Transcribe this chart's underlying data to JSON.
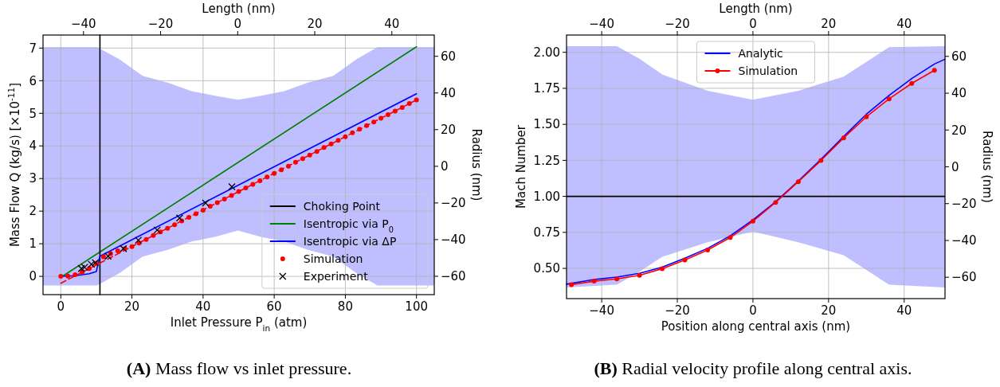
{
  "chart_data": [
    {
      "type": "line",
      "xlabel": "Inlet Pressure P$_{in}$ (atm)",
      "ylabel": "Mass Flow Q (kg/s) [×10$^{-11}$]",
      "x2label": "Length (nm)",
      "y2label": "Radius (nm)",
      "xlim": [
        -5,
        105
      ],
      "xticks": [
        0,
        20,
        40,
        60,
        80,
        100
      ],
      "ylim": [
        -0.56,
        7.4
      ],
      "yticks": [
        0,
        1,
        2,
        3,
        4,
        5,
        6,
        7
      ],
      "x2lim": [
        -50.5,
        51
      ],
      "x2ticks": [
        -40,
        -20,
        0,
        20,
        40
      ],
      "y2lim": [
        -70,
        71.6
      ],
      "y2ticks": [
        -60,
        -40,
        -20,
        0,
        20,
        40,
        60
      ],
      "grid": true,
      "legend": "bottom right",
      "series": [
        {
          "type": "line",
          "axis": "y2",
          "color": "#bfbfff",
          "x": [
            -5,
            10.2,
            16.5,
            23,
            30.2,
            36.8,
            43.3,
            49.8,
            56.3,
            62.8,
            69.3,
            76.6,
            83.1,
            89,
            105
          ],
          "values": [
            null,
            null,
            null,
            null,
            null,
            null,
            null,
            null,
            null,
            null,
            null,
            null,
            null,
            null,
            null
          ],
          "upper": [
            65,
            65,
            58.3,
            49.3,
            45.5,
            41,
            38.5,
            36.3,
            38.5,
            41,
            45.5,
            49.3,
            58.3,
            65,
            65
          ],
          "lower": [
            -65,
            -65,
            -58.3,
            -49.3,
            -45.5,
            -41,
            -38.5,
            -35,
            -38.5,
            -41,
            -45.5,
            -49.3,
            -58.3,
            -65,
            -65
          ]
        },
        {
          "type": "line",
          "name": "Isentropic via P$_{0}$",
          "color": "#008000",
          "x": [
            0.7,
            100
          ],
          "values": [
            0.02,
            7.04
          ]
        },
        {
          "type": "line",
          "name": "Choking Point",
          "color": "#000000",
          "x": [
            11,
            11
          ],
          "values": [
            -0.56,
            7.4
          ]
        },
        {
          "type": "line",
          "name": "Isentropic via ΔP",
          "color": "#0000ff",
          "x": [
            0,
            4,
            8,
            10,
            10.5,
            11,
            100
          ],
          "values": [
            0,
            0.02,
            0.08,
            0.15,
            0.4,
            0.62,
            5.6
          ]
        },
        {
          "type": "line",
          "color": "#ff0000",
          "line_style": "dashed",
          "x": [
            0,
            100
          ],
          "values": [
            -0.21,
            5.41
          ]
        },
        {
          "type": "scatter",
          "name": "Simulation",
          "color": "#ff0000",
          "marker": "circle",
          "x": [
            0,
            2,
            4,
            6,
            8,
            10,
            12,
            14,
            16,
            18,
            20,
            22,
            24,
            26,
            28,
            30,
            32,
            34,
            36,
            38,
            40,
            42,
            44,
            46,
            48,
            50,
            52,
            54,
            56,
            58,
            60,
            62,
            64,
            66,
            68,
            70,
            72,
            74,
            76,
            78,
            80,
            82,
            84,
            86,
            88,
            90,
            92,
            94,
            96,
            98,
            100
          ],
          "values": [
            0,
            0.01,
            0.05,
            0.13,
            0.24,
            0.4,
            0.6,
            0.7,
            0.78,
            0.85,
            0.91,
            1.02,
            1.13,
            1.25,
            1.36,
            1.47,
            1.58,
            1.7,
            1.81,
            1.92,
            2.03,
            2.15,
            2.26,
            2.37,
            2.48,
            2.6,
            2.71,
            2.82,
            2.93,
            3.05,
            3.16,
            3.27,
            3.38,
            3.5,
            3.61,
            3.72,
            3.83,
            3.95,
            4.06,
            4.17,
            4.28,
            4.4,
            4.51,
            4.62,
            4.73,
            4.85,
            4.96,
            5.07,
            5.18,
            5.3,
            5.41
          ]
        },
        {
          "type": "scatter",
          "name": "Experiment",
          "color": "#000000",
          "marker": "cross",
          "x": [
            5.8,
            6.7,
            8.6,
            9.7,
            13.3,
            17.6,
            21.8,
            27.1,
            33.4,
            40.7,
            48.1
          ],
          "values": [
            0.24,
            0.28,
            0.37,
            0.42,
            0.62,
            0.85,
            1.11,
            1.42,
            1.79,
            2.25,
            2.75
          ]
        }
      ],
      "annotations": [
        "(A) Mass flow vs inlet pressure."
      ]
    },
    {
      "type": "line",
      "xlabel": "Position along central axis (nm)",
      "ylabel": "Mach Number",
      "x2label": "Length (nm)",
      "y2label": "Radius (nm)",
      "xlim": [
        -49.3,
        50.8
      ],
      "xticks": [
        -40,
        -20,
        0,
        20,
        40
      ],
      "ylim": [
        0.29,
        2.12
      ],
      "yticks": [
        {
          "value": 0.5,
          "label": "0.50"
        },
        {
          "value": 0.75,
          "label": "0.75"
        },
        {
          "value": 1,
          "label": "1.00"
        },
        {
          "value": 1.25,
          "label": "1.25"
        },
        {
          "value": 1.5,
          "label": "1.50"
        },
        {
          "value": 1.75,
          "label": "1.75"
        },
        {
          "value": 2,
          "label": "2.00"
        }
      ],
      "x2lim": [
        -49.3,
        50.8
      ],
      "x2ticks": [
        -40,
        -20,
        0,
        20,
        40
      ],
      "y2lim": [
        -71.6,
        71.6
      ],
      "y2ticks": [
        -60,
        -40,
        -20,
        0,
        20,
        40,
        60
      ],
      "grid": true,
      "legend": "top",
      "ref_lines": [
        {
          "axis": "y",
          "value": 1,
          "color": "#000000"
        }
      ],
      "series": [
        {
          "type": "line",
          "axis": "y2",
          "color": "#bfbfff",
          "x": [
            -49.3,
            -36,
            -30,
            -24,
            -12,
            0,
            12,
            24,
            30,
            36,
            50.8
          ],
          "values": [
            null,
            null,
            null,
            null,
            null,
            null,
            null,
            null,
            null,
            null,
            null
          ],
          "upper": [
            65.5,
            65.5,
            58.7,
            50.2,
            41.3,
            36.5,
            41.3,
            49,
            57,
            65,
            65.5
          ],
          "lower": [
            -65.5,
            -64,
            -57,
            -48.9,
            -41,
            -35.2,
            -41,
            -48,
            -56,
            -64,
            -65.5
          ]
        },
        {
          "type": "line",
          "name": "Analytic",
          "color": "#0000ff",
          "x": [
            -49.3,
            -42,
            -36,
            -30,
            -24,
            -18,
            -12,
            -6,
            0,
            6,
            12,
            18,
            24,
            30,
            36,
            42,
            48,
            50.8
          ],
          "values": [
            0.39,
            0.423,
            0.439,
            0.466,
            0.508,
            0.571,
            0.639,
            0.726,
            0.837,
            0.962,
            1.106,
            1.257,
            1.416,
            1.57,
            1.7,
            1.818,
            1.919,
            1.952
          ]
        },
        {
          "type": "line",
          "name": "Simulation",
          "color": "#ff0000",
          "marker": "circle",
          "x": [
            -48,
            -42,
            -36,
            -30,
            -24,
            -18,
            -12,
            -6,
            0,
            6,
            12,
            18,
            24,
            30,
            36,
            42,
            48
          ],
          "values": [
            0.387,
            0.411,
            0.427,
            0.452,
            0.498,
            0.558,
            0.627,
            0.714,
            0.827,
            0.958,
            1.102,
            1.249,
            1.406,
            1.552,
            1.677,
            1.784,
            1.875
          ]
        }
      ],
      "annotations": [
        "(B) Radial velocity profile along central axis."
      ]
    }
  ]
}
